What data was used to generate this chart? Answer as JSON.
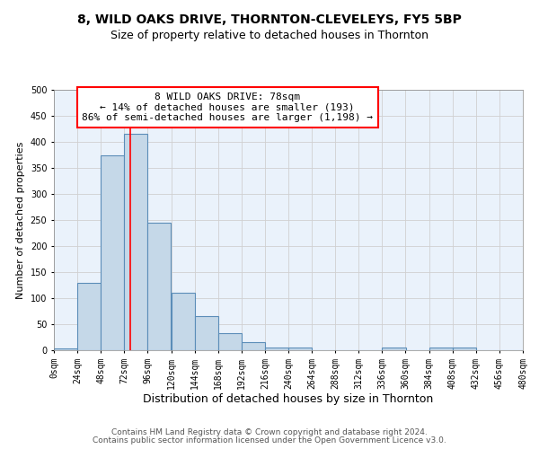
{
  "title": "8, WILD OAKS DRIVE, THORNTON-CLEVELEYS, FY5 5BP",
  "subtitle": "Size of property relative to detached houses in Thornton",
  "xlabel": "Distribution of detached houses by size in Thornton",
  "ylabel": "Number of detached properties",
  "bin_edges": [
    0,
    24,
    48,
    72,
    96,
    120,
    144,
    168,
    192,
    216,
    240,
    264,
    288,
    312,
    336,
    360,
    384,
    408,
    432,
    456,
    480
  ],
  "bar_heights": [
    3,
    130,
    375,
    415,
    245,
    110,
    65,
    33,
    15,
    6,
    6,
    0,
    0,
    0,
    6,
    0,
    6,
    6,
    0,
    0
  ],
  "bar_color": "#c5d8e8",
  "bar_edge_color": "#5b8db8",
  "bar_edge_width": 0.8,
  "grid_color": "#d0d0d0",
  "background_color": "#eaf2fb",
  "vline_x": 78,
  "vline_color": "red",
  "vline_linewidth": 1.2,
  "annotation_title": "8 WILD OAKS DRIVE: 78sqm",
  "annotation_line1": "← 14% of detached houses are smaller (193)",
  "annotation_line2": "86% of semi-detached houses are larger (1,198) →",
  "annotation_box_color": "white",
  "annotation_box_edge": "red",
  "xlim": [
    0,
    480
  ],
  "ylim": [
    0,
    500
  ],
  "yticks": [
    0,
    50,
    100,
    150,
    200,
    250,
    300,
    350,
    400,
    450,
    500
  ],
  "xtick_labels": [
    "0sqm",
    "24sqm",
    "48sqm",
    "72sqm",
    "96sqm",
    "120sqm",
    "144sqm",
    "168sqm",
    "192sqm",
    "216sqm",
    "240sqm",
    "264sqm",
    "288sqm",
    "312sqm",
    "336sqm",
    "360sqm",
    "384sqm",
    "408sqm",
    "432sqm",
    "456sqm",
    "480sqm"
  ],
  "footer_line1": "Contains HM Land Registry data © Crown copyright and database right 2024.",
  "footer_line2": "Contains public sector information licensed under the Open Government Licence v3.0.",
  "title_fontsize": 10,
  "subtitle_fontsize": 9,
  "xlabel_fontsize": 9,
  "ylabel_fontsize": 8,
  "tick_fontsize": 7,
  "footer_fontsize": 6.5,
  "annotation_fontsize": 8
}
